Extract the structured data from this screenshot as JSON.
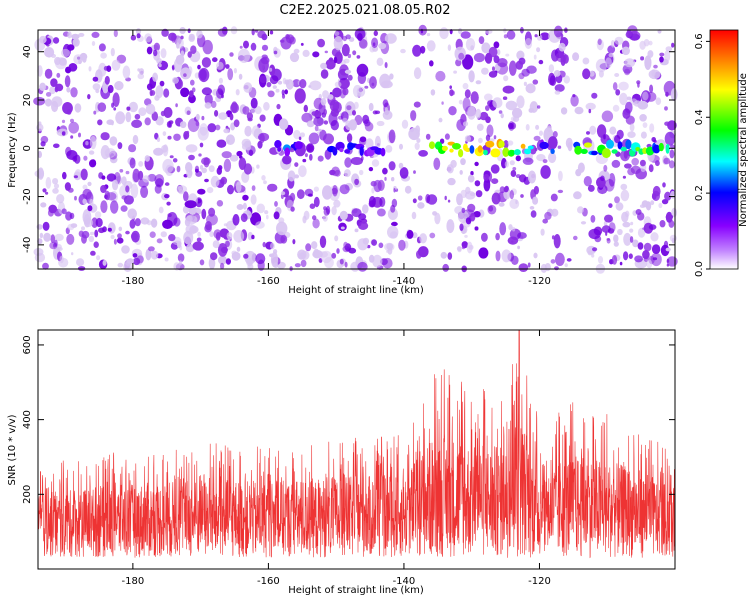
{
  "title": "C2E2.2025.021.08.05.R02",
  "chart_data": [
    {
      "type": "heatmap",
      "xlabel": "Height of straight line (km)",
      "ylabel": "Frequency (Hz)",
      "xlim": [
        -194,
        -100
      ],
      "ylim": [
        -50,
        49
      ],
      "x_ticks": [
        -180,
        -160,
        -140,
        -120
      ],
      "y_ticks": [
        -40,
        -20,
        0,
        20,
        40
      ],
      "colorbar": {
        "label": "Normalized spectral amplitude",
        "range": [
          0.0,
          0.63
        ],
        "ticks": [
          0.0,
          0.2,
          0.4,
          0.6
        ],
        "colors": [
          "#ffffff",
          "#8800ff",
          "#0000ff",
          "#00ffff",
          "#00ff00",
          "#ffff00",
          "#ff0000"
        ]
      },
      "background_color": "#8a2be2",
      "signal_band": {
        "frequency": 0,
        "segments": [
          {
            "x_start": -159,
            "x_end": -155,
            "level": 0.22
          },
          {
            "x_start": -151,
            "x_end": -143,
            "level": 0.18
          },
          {
            "x_start": -136,
            "x_end": -121,
            "level": 0.45
          },
          {
            "x_start": -120,
            "x_end": -118,
            "level": 0.2
          },
          {
            "x_start": -115,
            "x_end": -101,
            "level": 0.38
          }
        ]
      }
    },
    {
      "type": "line",
      "xlabel": "Height of straight line (km)",
      "ylabel": "SNR (10 * v/v)",
      "xlim": [
        -194,
        -100
      ],
      "ylim": [
        0,
        640
      ],
      "x_ticks": [
        -180,
        -160,
        -140,
        -120
      ],
      "y_ticks": [
        200,
        400,
        600
      ],
      "color": "#ee3333",
      "envelope": [
        {
          "x": -194,
          "max": 280
        },
        {
          "x": -180,
          "max": 320
        },
        {
          "x": -170,
          "max": 340
        },
        {
          "x": -160,
          "max": 330
        },
        {
          "x": -150,
          "max": 350
        },
        {
          "x": -140,
          "max": 360
        },
        {
          "x": -135,
          "max": 550
        },
        {
          "x": -130,
          "max": 500
        },
        {
          "x": -125,
          "max": 480
        },
        {
          "x": -123,
          "max": 640
        },
        {
          "x": -120,
          "max": 390
        },
        {
          "x": -115,
          "max": 450
        },
        {
          "x": -110,
          "max": 420
        },
        {
          "x": -105,
          "max": 380
        },
        {
          "x": -100,
          "max": 300
        }
      ]
    }
  ]
}
